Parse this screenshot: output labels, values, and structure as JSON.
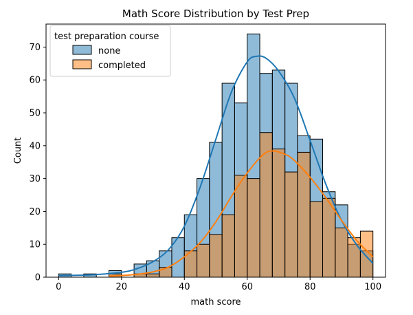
{
  "chart_data": {
    "type": "bar",
    "title": "Math Score Distribution by Test Prep",
    "xlabel": "math score",
    "ylabel": "Count",
    "xlim": [
      -4,
      104
    ],
    "ylim": [
      0,
      77
    ],
    "xticks": [
      0,
      20,
      40,
      60,
      80,
      100
    ],
    "yticks": [
      0,
      10,
      20,
      30,
      40,
      50,
      60,
      70
    ],
    "bin_edges": [
      0,
      4,
      8,
      12,
      16,
      20,
      24,
      28,
      32,
      36,
      40,
      44,
      48,
      52,
      56,
      60,
      64,
      68,
      72,
      76,
      80,
      84,
      88,
      92,
      96,
      100
    ],
    "legend": {
      "title": "test preparation course",
      "placement": "upper left"
    },
    "series": [
      {
        "name": "none",
        "color": "#1f77b4",
        "counts": [
          1,
          0,
          1,
          0,
          2,
          0,
          4,
          5,
          8,
          12,
          19,
          30,
          41,
          59,
          53,
          74,
          62,
          63,
          59,
          43,
          42,
          26,
          22,
          10,
          8
        ],
        "kde_x": [
          0,
          10,
          20,
          25,
          30,
          35,
          40,
          45,
          50,
          55,
          60,
          63,
          66,
          70,
          75,
          80,
          85,
          90,
          95,
          100
        ],
        "kde_y": [
          0.5,
          0.7,
          1.5,
          2.6,
          4.7,
          8.4,
          15.5,
          27.3,
          41.9,
          56.4,
          65.5,
          67.2,
          66.6,
          62.7,
          54.5,
          41.6,
          28.3,
          17.3,
          9.6,
          4.2
        ]
      },
      {
        "name": "completed",
        "color": "#ff7f0e",
        "counts": [
          0,
          0,
          0,
          0,
          1,
          0,
          1,
          1,
          3,
          0,
          8,
          10,
          13,
          19,
          31,
          30,
          44,
          39,
          32,
          38,
          23,
          24,
          15,
          12,
          14
        ],
        "kde_x": [
          16,
          20,
          25,
          30,
          35,
          40,
          45,
          50,
          55,
          60,
          65,
          68,
          72,
          75,
          80,
          85,
          90,
          95,
          100
        ],
        "kde_y": [
          0.3,
          0.5,
          0.9,
          1.6,
          3.1,
          6.2,
          10.5,
          16.8,
          24.6,
          31.7,
          37.2,
          38.4,
          37.4,
          35.5,
          30.4,
          24.2,
          17.3,
          11.0,
          6.2
        ]
      }
    ]
  }
}
